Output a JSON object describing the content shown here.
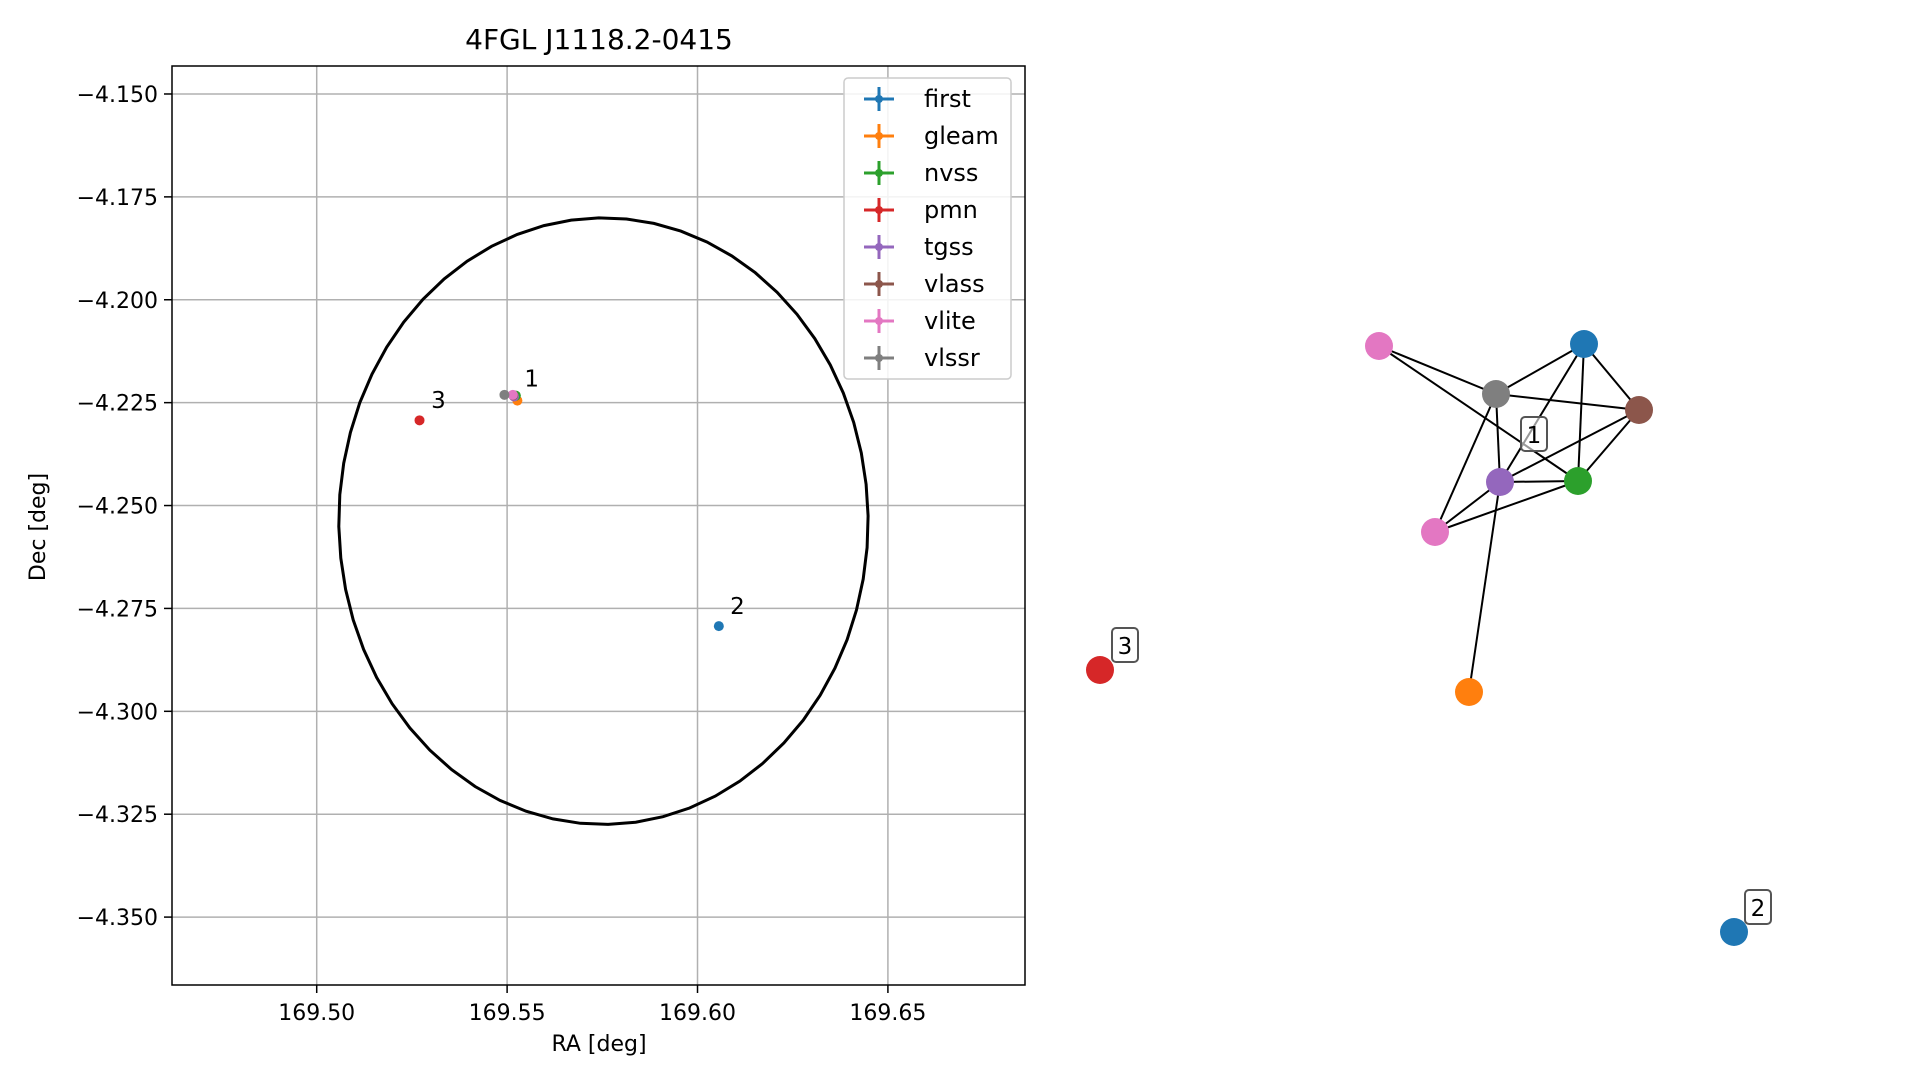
{
  "chart_data": [
    {
      "type": "scatter",
      "title": "4FGL J1118.2-0415",
      "xlabel": "RA [deg]",
      "ylabel": "Dec [deg]",
      "xlim": [
        169.462,
        169.686
      ],
      "ylim": [
        -4.3665,
        -4.1432
      ],
      "xticks": [
        169.5,
        169.55,
        169.6,
        169.65
      ],
      "xtick_labels": [
        "169.50",
        "169.55",
        "169.60",
        "169.65"
      ],
      "yticks": [
        -4.15,
        -4.175,
        -4.2,
        -4.225,
        -4.25,
        -4.275,
        -4.3,
        -4.325,
        -4.35
      ],
      "ytick_labels": [
        "−4.150",
        "−4.175",
        "−4.200",
        "−4.225",
        "−4.250",
        "−4.275",
        "−4.300",
        "−4.325",
        "−4.350"
      ],
      "grid": true,
      "legend_position": "top-right",
      "uncertainty_ellipse": {
        "center_ra": 169.5753,
        "center_dec": -4.2538,
        "semi_axis_ra": 0.0695,
        "semi_axis_dec": 0.0737,
        "rotation_deg": 7,
        "color": "#000000"
      },
      "series": [
        {
          "name": "first",
          "color": "#1f77b4",
          "points": [
            {
              "ra": 169.6056,
              "dec": -4.2793
            }
          ]
        },
        {
          "name": "gleam",
          "color": "#ff7f0e",
          "points": [
            {
              "ra": 169.5527,
              "dec": -4.2245
            }
          ]
        },
        {
          "name": "nvss",
          "color": "#2ca02c",
          "points": [
            {
              "ra": 169.5523,
              "dec": -4.2233
            }
          ]
        },
        {
          "name": "pmn",
          "color": "#d62728",
          "points": [
            {
              "ra": 169.527,
              "dec": -4.2293
            }
          ]
        },
        {
          "name": "tgss",
          "color": "#9467bd",
          "points": [
            {
              "ra": 169.5518,
              "dec": -4.2235
            }
          ]
        },
        {
          "name": "vlass",
          "color": "#8c564b",
          "points": [
            {
              "ra": 169.5516,
              "dec": -4.2232
            }
          ]
        },
        {
          "name": "vlite",
          "color": "#e377c2",
          "points": [
            {
              "ra": 169.5515,
              "dec": -4.2231
            }
          ]
        },
        {
          "name": "vlssr",
          "color": "#7f7f7f",
          "points": [
            {
              "ra": 169.5493,
              "dec": -4.2231
            }
          ]
        }
      ],
      "annotations": [
        {
          "text": "1",
          "ra": 169.5535,
          "dec": -4.2225
        },
        {
          "text": "2",
          "ra": 169.6075,
          "dec": -4.2778
        },
        {
          "text": "3",
          "ra": 169.529,
          "dec": -4.2278
        }
      ]
    },
    {
      "type": "network",
      "nodes": [
        {
          "id": "vlite_a",
          "color": "#e377c2"
        },
        {
          "id": "vlssr",
          "color": "#7f7f7f"
        },
        {
          "id": "first_a",
          "color": "#1f77b4"
        },
        {
          "id": "vlass",
          "color": "#8c564b"
        },
        {
          "id": "tgss",
          "color": "#9467bd"
        },
        {
          "id": "nvss",
          "color": "#2ca02c"
        },
        {
          "id": "vlite_b",
          "color": "#e377c2"
        },
        {
          "id": "gleam",
          "color": "#ff7f0e"
        },
        {
          "id": "pmn",
          "color": "#d62728"
        },
        {
          "id": "first_b",
          "color": "#1f77b4"
        }
      ],
      "edges": [
        [
          "vlite_a",
          "vlssr"
        ],
        [
          "vlite_a",
          "nvss"
        ],
        [
          "vlssr",
          "first_a"
        ],
        [
          "vlssr",
          "vlass"
        ],
        [
          "vlssr",
          "tgss"
        ],
        [
          "vlssr",
          "vlite_b"
        ],
        [
          "first_a",
          "vlass"
        ],
        [
          "first_a",
          "tgss"
        ],
        [
          "first_a",
          "nvss"
        ],
        [
          "vlass",
          "tgss"
        ],
        [
          "vlass",
          "nvss"
        ],
        [
          "tgss",
          "nvss"
        ],
        [
          "tgss",
          "vlite_b"
        ],
        [
          "tgss",
          "gleam"
        ],
        [
          "nvss",
          "vlite_b"
        ]
      ],
      "cluster_labels": [
        {
          "text": "1",
          "near": "tgss"
        },
        {
          "text": "2",
          "near": "first_b"
        },
        {
          "text": "3",
          "near": "pmn"
        }
      ]
    }
  ]
}
